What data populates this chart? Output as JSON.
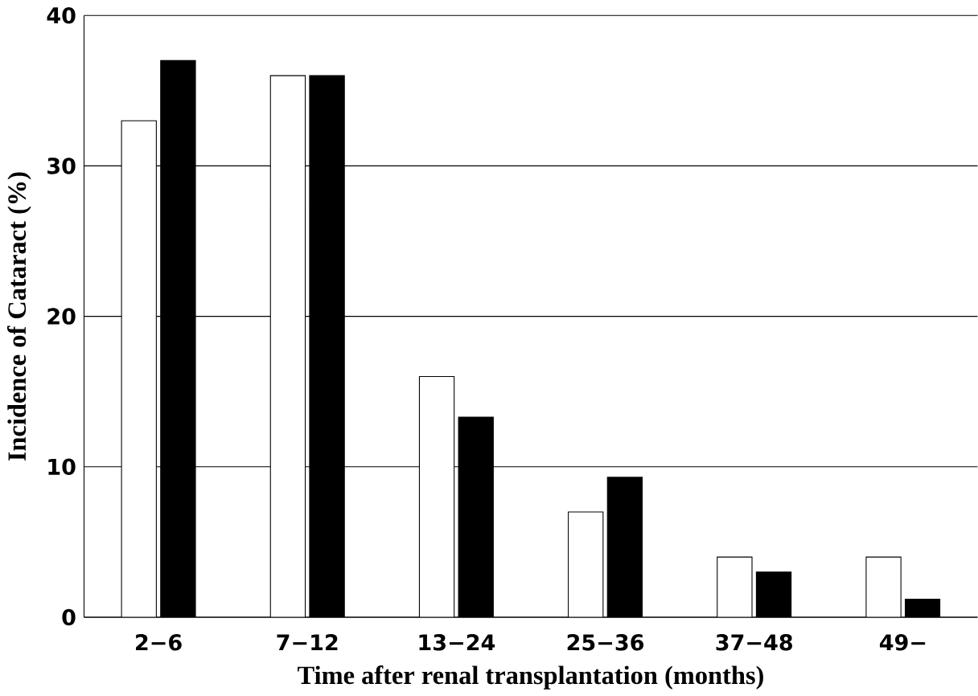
{
  "chart_data": {
    "type": "bar",
    "xlabel": "Time after renal transplantation (months)",
    "ylabel": "Incidence of Cataract (%)",
    "categories": [
      "2−6",
      "7−12",
      "13−24",
      "25−36",
      "37−48",
      "49−"
    ],
    "series": [
      {
        "color": "#ffffff",
        "values": [
          33,
          36,
          16,
          7,
          4,
          4
        ]
      },
      {
        "color": "#000000",
        "values": [
          37,
          36,
          13.3,
          9.3,
          3,
          1.2
        ]
      }
    ],
    "ylim": [
      0,
      40
    ],
    "yticks": [
      0,
      10,
      20,
      30,
      40
    ],
    "grid": "y"
  }
}
